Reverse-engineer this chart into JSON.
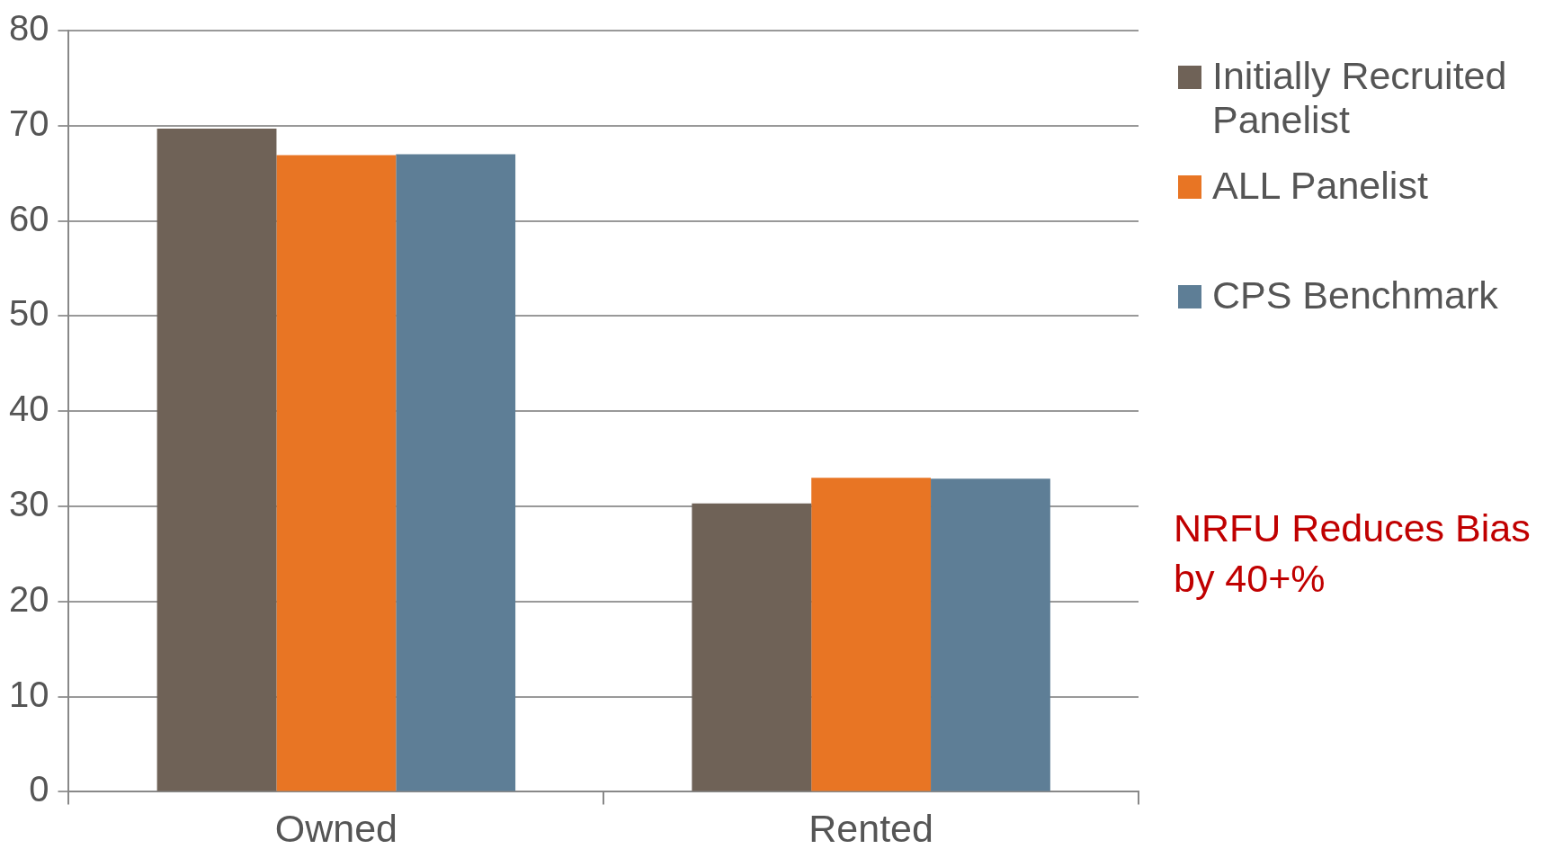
{
  "chart_data": {
    "type": "bar",
    "categories": [
      "Owned",
      "Rented"
    ],
    "series": [
      {
        "name": "Initially Recruited Panelist",
        "color": "#6f6257",
        "values": [
          69.7,
          30.3
        ]
      },
      {
        "name": "ALL Panelist",
        "color": "#e87524",
        "values": [
          66.9,
          33.0
        ]
      },
      {
        "name": "CPS Benchmark",
        "color": "#5e7e96",
        "values": [
          67.0,
          32.9
        ]
      }
    ],
    "ylim": [
      0,
      80
    ],
    "yticks": [
      0,
      10,
      20,
      30,
      40,
      50,
      60,
      70,
      80
    ],
    "grid": "y",
    "legend": "right",
    "annotations": [
      "NRFU Reduces Bias by 40+%"
    ]
  }
}
